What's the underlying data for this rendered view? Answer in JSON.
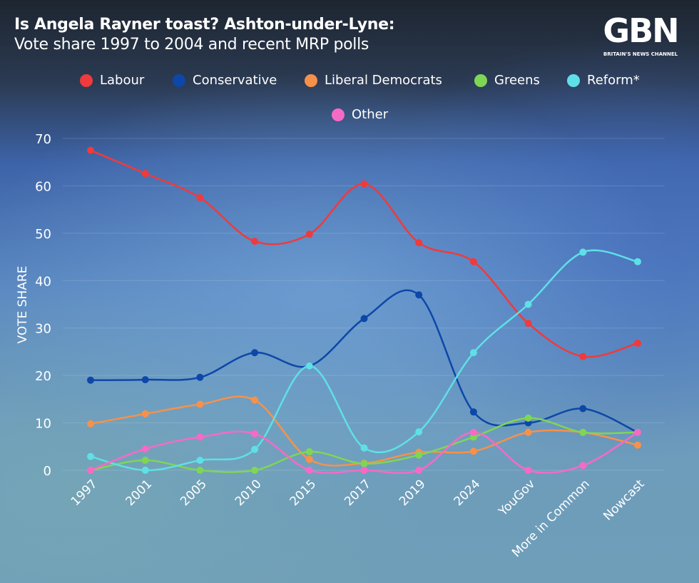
{
  "header": {
    "title": "Is Angela Rayner toast? Ashton-under-Lyne:",
    "subtitle": "Vote share 1997 to 2004 and recent MRP polls"
  },
  "logo": {
    "mark": "GBN",
    "tagline": "BRITAIN'S NEWS CHANNEL"
  },
  "chart_data": {
    "type": "line",
    "title": "Is Angela Rayner toast? Ashton-under-Lyne:",
    "subtitle": "Vote share 1997 to 2004 and recent MRP polls",
    "xlabel": "",
    "ylabel": "VOTE SHARE",
    "ylim": [
      0,
      70
    ],
    "yticks": [
      0,
      10,
      20,
      30,
      40,
      50,
      60,
      70
    ],
    "grid": true,
    "legend_placement": "top",
    "smooth": true,
    "categories": [
      "1997",
      "2001",
      "2005",
      "2010",
      "2015",
      "2017",
      "2019",
      "2024",
      "YouGov",
      "More in Common",
      "Nowcast"
    ],
    "series": [
      {
        "name": "Labour",
        "color": "#f03a3c",
        "values": [
          67.5,
          62.6,
          57.5,
          48.3,
          49.8,
          60.4,
          48,
          44,
          31,
          24,
          26.8
        ]
      },
      {
        "name": "Conservative",
        "color": "#0d47a8",
        "values": [
          19,
          19.1,
          19.6,
          24.8,
          22,
          32,
          37,
          12.3,
          10,
          13,
          8
        ]
      },
      {
        "name": "Liberal Democrats",
        "color": "#f7914a",
        "values": [
          9.8,
          11.9,
          13.9,
          14.8,
          2.3,
          1.5,
          3.8,
          4,
          8,
          8,
          5.3
        ]
      },
      {
        "name": "Greens",
        "color": "#7fd655",
        "values": [
          0,
          2.1,
          0,
          0,
          3.9,
          1.4,
          3.2,
          7,
          11,
          8,
          8
        ]
      },
      {
        "name": "Reform*",
        "color": "#5ee0e6",
        "values": [
          2.9,
          0,
          2.1,
          4.4,
          22,
          4.7,
          8.1,
          24.8,
          35,
          46,
          44
        ]
      },
      {
        "name": "Other",
        "color": "#f66ac6",
        "values": [
          0,
          4.5,
          7,
          7.7,
          0,
          0,
          0,
          8,
          0,
          1,
          8
        ]
      }
    ]
  }
}
